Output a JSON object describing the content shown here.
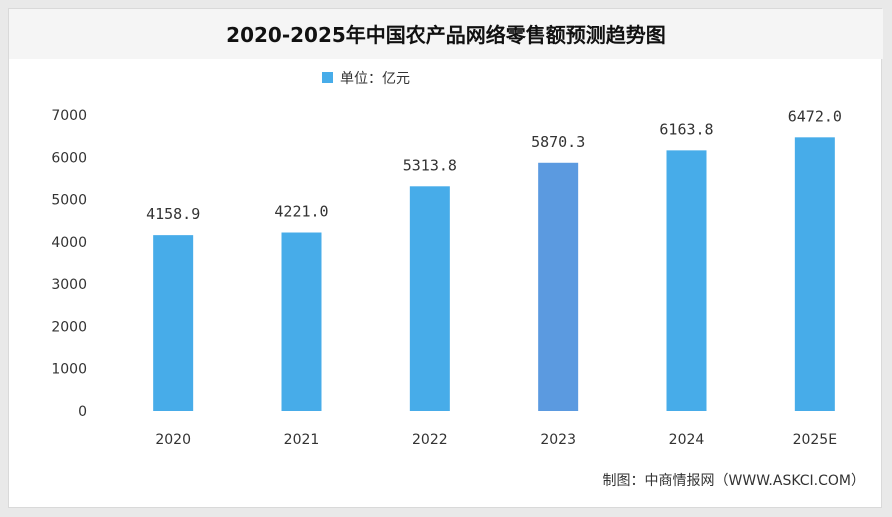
{
  "chart_data": {
    "type": "bar",
    "title": "2020-2025年中国农产品网络零售额预测趋势图",
    "legend": {
      "label": "单位：亿元",
      "position": "top-center"
    },
    "categories": [
      "2020",
      "2021",
      "2022",
      "2023",
      "2024",
      "2025E"
    ],
    "values": [
      4158.9,
      4221.0,
      5313.8,
      5870.3,
      6163.8,
      6472.0
    ],
    "value_labels": [
      "4158.9",
      "4221.0",
      "5313.8",
      "5870.3",
      "6163.8",
      "6472.0"
    ],
    "ylim": [
      0,
      7000
    ],
    "yticks": [
      0,
      1000,
      2000,
      3000,
      4000,
      5000,
      6000,
      7000
    ],
    "xlabel": "",
    "ylabel": "",
    "grid": false,
    "bar_color": "#47ace9",
    "highlight_color": "#5b9ae0",
    "highlight_index": 3,
    "source": "制图：中商情报网（WWW.ASKCI.COM）"
  }
}
